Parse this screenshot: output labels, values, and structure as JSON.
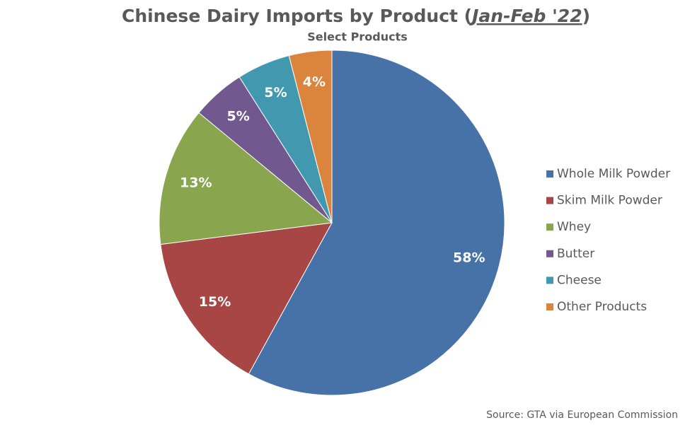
{
  "chart_data": {
    "type": "pie",
    "title": [
      "Chinese Dairy Imports by Product (",
      "Jan-Feb '22",
      ")"
    ],
    "subtitle": "Select Products",
    "categories": [
      "Whole Milk Powder",
      "Skim Milk Powder",
      "Whey",
      "Butter",
      "Cheese",
      "Other Products"
    ],
    "values": [
      58,
      15,
      13,
      5,
      5,
      4
    ],
    "value_labels": [
      "58%",
      "15%",
      "13%",
      "5%",
      "5%",
      "4%"
    ],
    "colors": [
      "#4672A8",
      "#A84645",
      "#89A54E",
      "#71588F",
      "#4198AF",
      "#DB843D"
    ],
    "legend": "right",
    "source": "Source: GTA via European Commission"
  }
}
